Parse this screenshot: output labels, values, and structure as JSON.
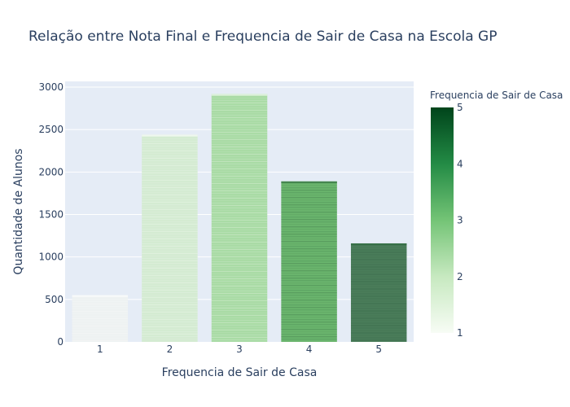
{
  "chart_data": {
    "type": "bar",
    "title": "Relação entre Nota Final e Frequencia de Sair de Casa na Escola GP",
    "xlabel": "Frequencia de Sair de Casa",
    "ylabel": "Quantidade de Alunos",
    "categories": [
      "1",
      "2",
      "3",
      "4",
      "5"
    ],
    "values": [
      550,
      2440,
      2920,
      1890,
      1160
    ],
    "ylim": [
      0,
      3000
    ],
    "yticks": [
      "0",
      "500",
      "1000",
      "1500",
      "2000",
      "2500",
      "3000"
    ],
    "grid": true,
    "colorbar": {
      "title": "Frequencia de Sair de Casa",
      "range": [
        1,
        5
      ],
      "ticks": [
        "1",
        "2",
        "3",
        "4",
        "5"
      ],
      "colorscale": "Greens"
    },
    "colors": {
      "plot_bg": "#e5ecf6",
      "grid": "#ffffff",
      "text": "#2a3f5f",
      "bar_fills": [
        "#eef2f2",
        "#d4ebd2",
        "#a9dba5",
        "#6ab56d",
        "#4a7d5a"
      ]
    }
  }
}
